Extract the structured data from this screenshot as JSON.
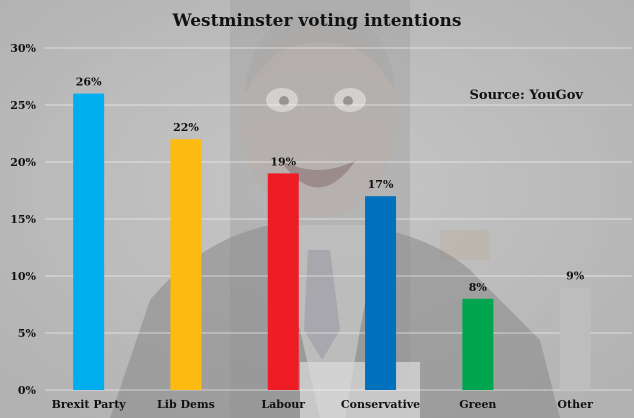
{
  "chart_data": {
    "type": "bar",
    "title": "Westminster voting intentions",
    "source": "Source: YouGov",
    "categories": [
      "Brexit Party",
      "Lib Dems",
      "Labour",
      "Conservative",
      "Green",
      "Other"
    ],
    "values": [
      26,
      22,
      19,
      17,
      8,
      9
    ],
    "value_labels": [
      "26%",
      "22%",
      "19%",
      "17%",
      "8%",
      "9%"
    ],
    "colors": [
      "#00AEEF",
      "#FDBB11",
      "#EE1C25",
      "#0071BC",
      "#00A550",
      "#BDBDBD"
    ],
    "ylim": [
      0,
      30
    ],
    "yticks": [
      0,
      5,
      10,
      15,
      20,
      25,
      30
    ],
    "ytick_labels": [
      "0%",
      "5%",
      "10%",
      "15%",
      "20%",
      "25%",
      "30%"
    ],
    "xlabel": "",
    "ylabel": "",
    "grid": true,
    "background": "photo of a grinning man in a suit, faded grey"
  }
}
